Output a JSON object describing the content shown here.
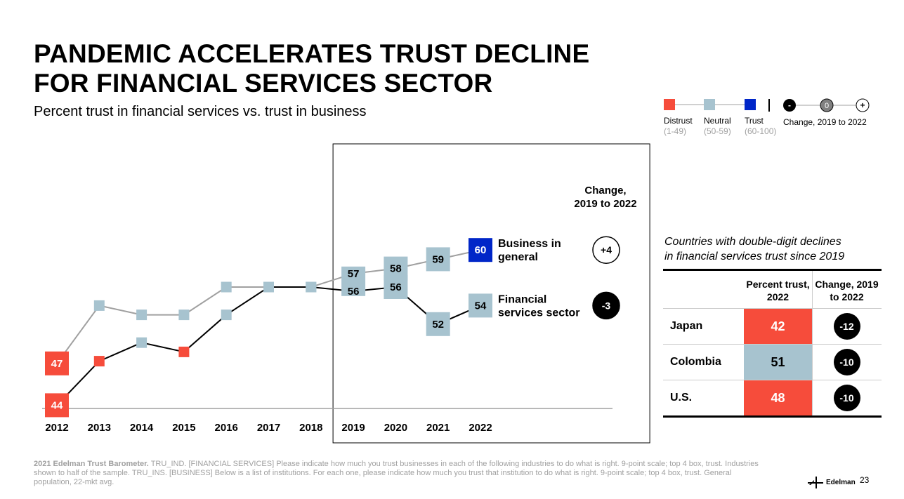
{
  "header": {
    "title_line1": "PANDEMIC ACCELERATES TRUST DECLINE",
    "title_line2": "FOR FINANCIAL SERVICES SECTOR",
    "subtitle": "Percent trust in financial services vs. trust in business"
  },
  "legend": {
    "distrust": {
      "label": "Distrust",
      "range": "(1-49)",
      "color": "#f64c3b"
    },
    "neutral": {
      "label": "Neutral",
      "range": "(50-59)",
      "color": "#a7c3cf"
    },
    "trust": {
      "label": "Trust",
      "range": "(60-100)",
      "color": "#0026c8"
    },
    "change_label": "Change, 2019 to 2022",
    "change_symbols": [
      "-",
      "0",
      "+"
    ]
  },
  "chart_data": {
    "type": "line",
    "categories": [
      "2012",
      "2013",
      "2014",
      "2015",
      "2016",
      "2017",
      "2018",
      "2019",
      "2020",
      "2021",
      "2022"
    ],
    "series": [
      {
        "name": "Business in general",
        "values": [
          47,
          54,
          53,
          53,
          56,
          56,
          56,
          57,
          58,
          59,
          60
        ],
        "label_years": [
          "2012",
          "2019",
          "2020",
          "2021",
          "2022"
        ]
      },
      {
        "name": "Financial services sector",
        "values": [
          44,
          48,
          50,
          49,
          53,
          56,
          56,
          56,
          56,
          52,
          54
        ],
        "label_years": [
          "2012",
          "2019",
          "2020",
          "2021",
          "2022"
        ]
      }
    ],
    "change_header": "Change, 2019 to 2022",
    "changes": [
      "+4",
      "-3"
    ],
    "highlight_range": [
      "2019",
      "2022"
    ]
  },
  "table": {
    "caption_line1": "Countries with double-digit declines",
    "caption_line2": "in financial services trust since 2019",
    "col1": "Percent trust, 2022",
    "col2": "Change, 2019 to 2022",
    "rows": [
      {
        "country": "Japan",
        "value": "42",
        "change": "-12",
        "color": "#f64c3b"
      },
      {
        "country": "Colombia",
        "value": "51",
        "change": "-10",
        "color": "#a7c3cf"
      },
      {
        "country": "U.S.",
        "value": "48",
        "change": "-10",
        "color": "#f64c3b"
      }
    ]
  },
  "footer": {
    "source_bold": "2021 Edelman Trust Barometer.",
    "source_text": " TRU_IND. [FINANCIAL SERVICES] Please indicate how much you trust businesses in each of the following industries to do what is right. 9-point scale; top 4 box, trust. Industries shown to half of the sample. TRU_INS. [BUSINESS] Below is a list of institutions. For each one, please indicate how much you trust that institution to do what is right. 9-point scale; top 4 box, trust. General population, 22-mkt avg.",
    "brand": "Edelman",
    "page": "23"
  }
}
